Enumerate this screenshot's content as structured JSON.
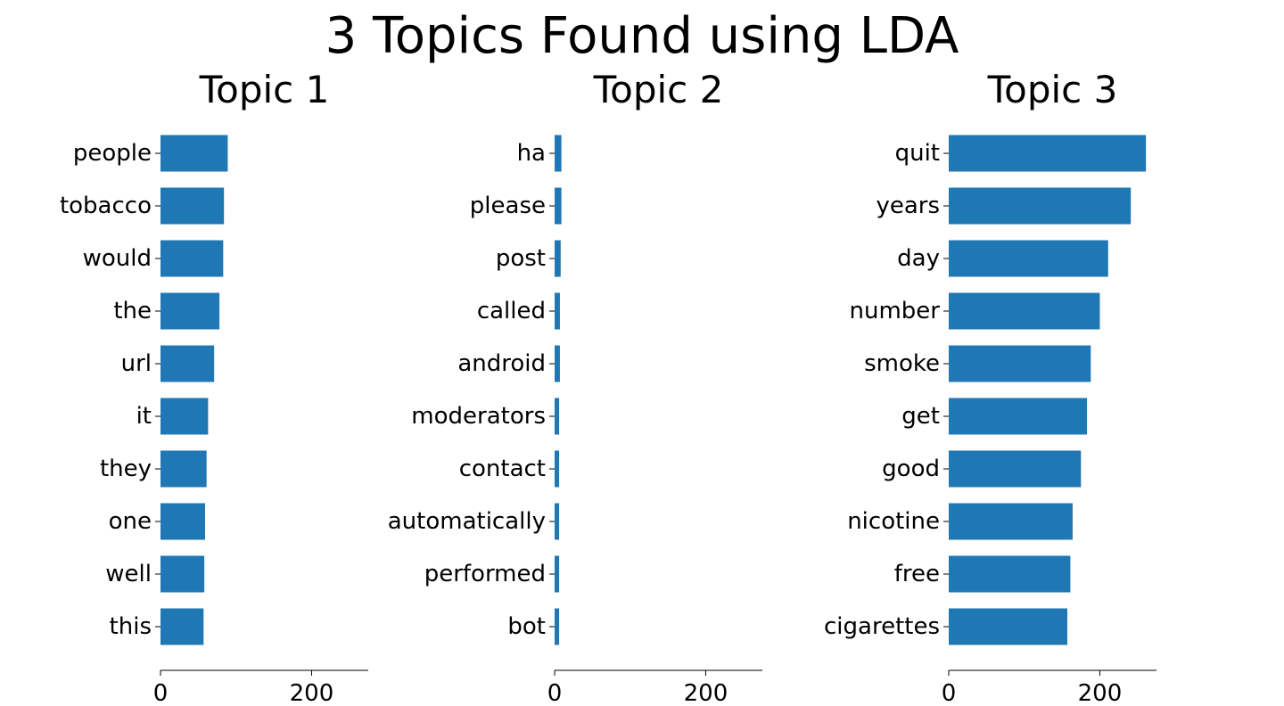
{
  "title": "3 Topics Found using LDA",
  "chart_data": [
    {
      "type": "bar",
      "orientation": "horizontal",
      "title": "Topic 1",
      "categories": [
        "people",
        "tobacco",
        "would",
        "the",
        "url",
        "it",
        "they",
        "one",
        "well",
        "this"
      ],
      "values": [
        89,
        84,
        83,
        78,
        71,
        63,
        61,
        59,
        58,
        57
      ],
      "xlim": [
        0,
        275
      ],
      "xticks": [
        0,
        200
      ],
      "color": "#1f77b4"
    },
    {
      "type": "bar",
      "orientation": "horizontal",
      "title": "Topic 2",
      "categories": [
        "ha",
        "please",
        "post",
        "called",
        "android",
        "moderators",
        "contact",
        "automatically",
        "performed",
        "bot"
      ],
      "values": [
        9,
        9,
        8,
        7,
        7,
        6,
        6,
        6,
        6,
        6
      ],
      "xlim": [
        0,
        275
      ],
      "xticks": [
        0,
        200
      ],
      "color": "#1f77b4"
    },
    {
      "type": "bar",
      "orientation": "horizontal",
      "title": "Topic 3",
      "categories": [
        "quit",
        "years",
        "day",
        "number",
        "smoke",
        "get",
        "good",
        "nicotine",
        "free",
        "cigarettes"
      ],
      "values": [
        261,
        241,
        211,
        200,
        188,
        183,
        175,
        164,
        161,
        157
      ],
      "xlim": [
        0,
        275
      ],
      "xticks": [
        0,
        200
      ],
      "color": "#1f77b4"
    }
  ]
}
